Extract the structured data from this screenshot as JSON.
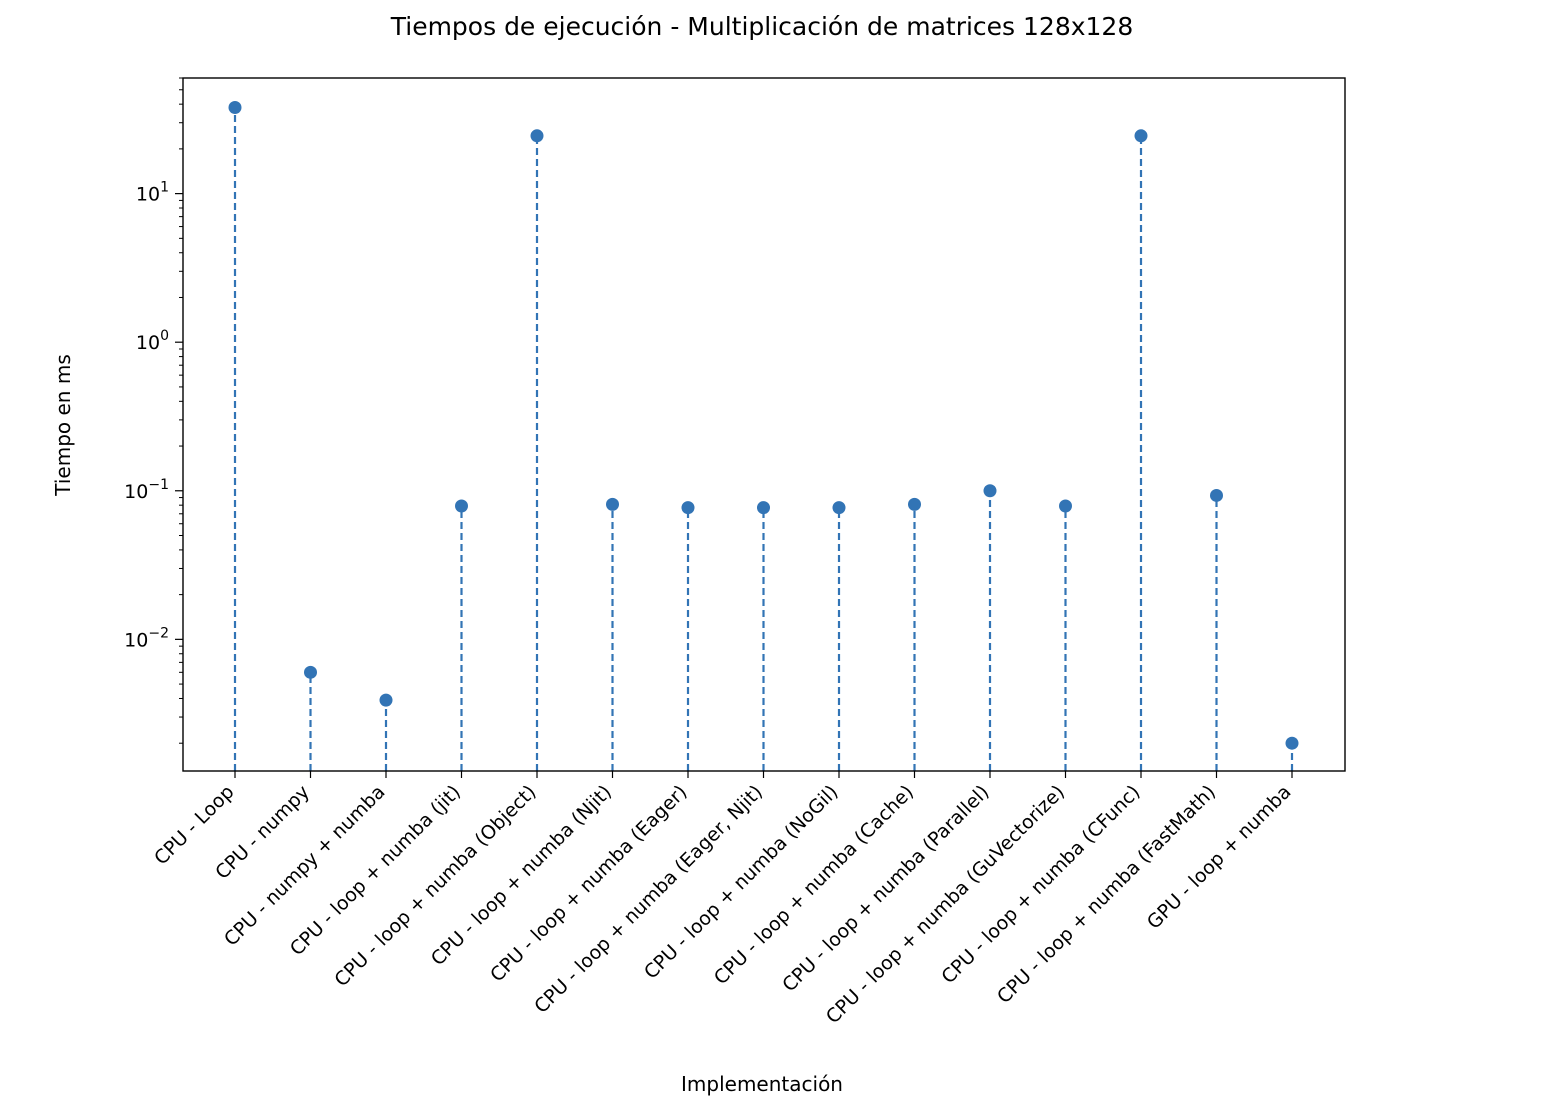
{
  "chart_data": {
    "type": "stem",
    "title": "Tiempos de ejecución - Multiplicación de matrices 128x128",
    "xlabel": "Implementación",
    "ylabel": "Tiempo en ms",
    "yscale": "log",
    "ylim": [
      0.0013,
      60
    ],
    "yticks": [
      {
        "value": 0.01,
        "base": "10",
        "exp": "−2"
      },
      {
        "value": 0.1,
        "base": "10",
        "exp": "−1"
      },
      {
        "value": 1,
        "base": "10",
        "exp": "0"
      },
      {
        "value": 10,
        "base": "10",
        "exp": "1"
      }
    ],
    "grid": false,
    "legend": "none",
    "colors": {
      "series": "#3274b5"
    },
    "categories": [
      "CPU - Loop",
      "CPU - numpy",
      "CPU - numpy + numba",
      "CPU - loop + numba (jit)",
      "CPU - loop + numba (Object)",
      "CPU - loop + numba (Njit)",
      "CPU - loop + numba (Eager)",
      "CPU - loop + numba (Eager, Njit)",
      "CPU - loop + numba (NoGil)",
      "CPU - loop + numba (Cache)",
      "CPU - loop + numba (Parallel)",
      "CPU - loop + numba (GuVectorize)",
      "CPU - loop + numba (CFunc)",
      "CPU - loop + numba (FastMath)",
      "GPU - loop + numba"
    ],
    "values": [
      38,
      0.006,
      0.0039,
      0.079,
      24.5,
      0.081,
      0.077,
      0.077,
      0.077,
      0.081,
      0.1,
      0.079,
      24.5,
      0.093,
      0.002
    ]
  }
}
